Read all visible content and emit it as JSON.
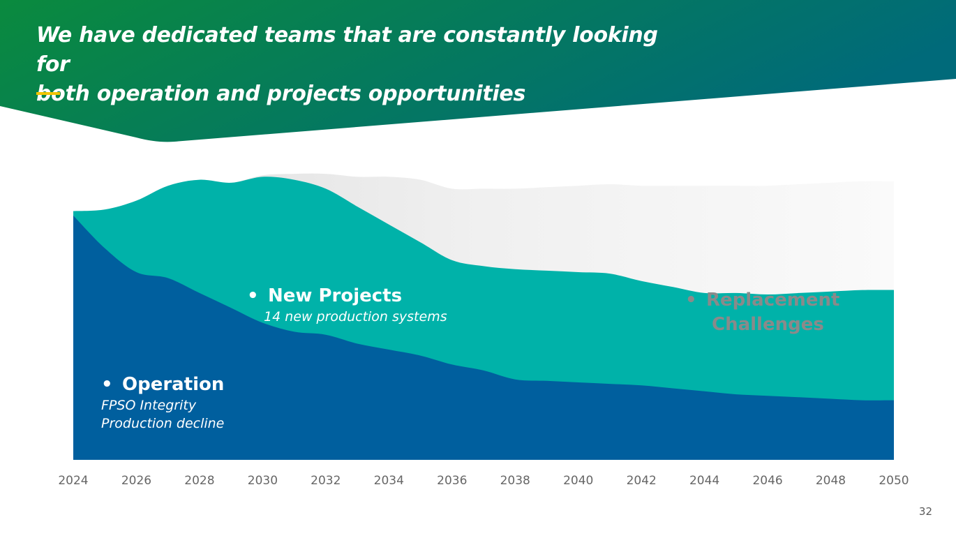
{
  "slide": {
    "title_line1": "We have dedicated teams that are constantly looking for",
    "title_line2": "both operation and projects opportunities",
    "page_number": "32"
  },
  "colors": {
    "banner_start": "#0a8a3e",
    "banner_end": "#006a7a",
    "accent": "#f2c400",
    "operation": "#005f9e",
    "new_projects": "#00b2a9",
    "replacement": "#ededed",
    "tick_text": "#666666"
  },
  "chart_data": {
    "type": "area",
    "stacked": true,
    "x": [
      2024,
      2025,
      2026,
      2027,
      2028,
      2029,
      2030,
      2031,
      2032,
      2033,
      2034,
      2035,
      2036,
      2037,
      2038,
      2039,
      2040,
      2041,
      2042,
      2043,
      2044,
      2045,
      2046,
      2047,
      2048,
      2049,
      2050
    ],
    "ylim": [
      0,
      100
    ],
    "series": [
      {
        "name": "Operation",
        "values": [
          82,
          71,
          63,
          61,
          56,
          51,
          46,
          43,
          42,
          39,
          37,
          35,
          32,
          30,
          27,
          26.5,
          26,
          25.5,
          25,
          24,
          23,
          22,
          21.5,
          21,
          20.5,
          20,
          20
        ]
      },
      {
        "name": "New Projects",
        "values": [
          1.5,
          13,
          24,
          31,
          38,
          42,
          49,
          51,
          49,
          46,
          42,
          38,
          35,
          35,
          37,
          37,
          37,
          37,
          35,
          34,
          33,
          34,
          34,
          35,
          36,
          37,
          37
        ]
      },
      {
        "name": "Replacement Challenges",
        "values": [
          0,
          0,
          0,
          0,
          0,
          0,
          0.5,
          2,
          5,
          10,
          16,
          21,
          24,
          26,
          27,
          28,
          29,
          30,
          32,
          34,
          36,
          36,
          36.5,
          36.5,
          36.5,
          36.5,
          36.5
        ]
      }
    ],
    "x_ticks": [
      "2024",
      "2026",
      "2028",
      "2030",
      "2032",
      "2034",
      "2036",
      "2038",
      "2040",
      "2042",
      "2044",
      "2046",
      "2048",
      "2050"
    ],
    "labels": {
      "operation_title": "Operation",
      "operation_sub1": "FPSO Integrity",
      "operation_sub2": "Production decline",
      "new_title": "New Projects",
      "new_sub": "14 new production systems",
      "replacement_line1": "Replacement",
      "replacement_line2": "Challenges"
    },
    "bullet": "•"
  }
}
